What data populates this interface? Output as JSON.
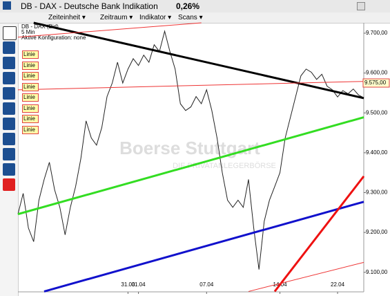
{
  "header": {
    "title": "DB - DAX - Deutsche Bank Indikation",
    "change": "0,26%"
  },
  "menu": [
    "Zeiteinheit",
    "Zeitraum",
    "Indikator",
    "Scans"
  ],
  "info": [
    "DB - DAX (Bid)",
    "5 Min",
    "Aktive Konfiguration: none"
  ],
  "drawings": [
    "Linie",
    "Linie",
    "Linie",
    "Linie",
    "Linie",
    "Linie",
    "Linie",
    "Linie"
  ],
  "watermark": {
    "brand": "Boerse Stuttgart",
    "slogan": "DIE PRIVATANLEGERBÖRSE"
  },
  "chart_data": {
    "type": "line",
    "categories": [
      null,
      null,
      null,
      null,
      null,
      null,
      null,
      null,
      null,
      null,
      null,
      null,
      null,
      null,
      null,
      null,
      null,
      null,
      null,
      null,
      null,
      "31.03",
      null,
      "01.04",
      null,
      null,
      null,
      null,
      null,
      null,
      null,
      null,
      null,
      null,
      null,
      null,
      "07.04",
      null,
      null,
      null,
      null,
      null,
      null,
      null,
      null,
      null,
      null,
      null,
      null,
      null,
      "14.04",
      null,
      null,
      null,
      null,
      null,
      null,
      null,
      null,
      null,
      null,
      "22.04",
      null,
      null,
      null,
      null,
      null
    ],
    "series": [
      {
        "color": "#222222",
        "values": [
          9246,
          9298,
          9211,
          9177,
          9281,
          9333,
          9376,
          9307,
          9263,
          9194,
          9263,
          9315,
          9385,
          9480,
          9437,
          9419,
          9463,
          9541,
          9575,
          9627,
          9575,
          9610,
          9636,
          9619,
          9645,
          9627,
          9671,
          9654,
          9705,
          9654,
          9610,
          9523,
          9506,
          9515,
          9541,
          9523,
          9558,
          9506,
          9437,
          9350,
          9281,
          9263,
          9281,
          9263,
          9333,
          9211,
          9107,
          9228,
          9281,
          9315,
          9350,
          9437,
          9489,
          9541,
          9593,
          9610,
          9602,
          9584,
          9597,
          9567,
          9558,
          9540,
          9556,
          9548,
          9560,
          9545,
          9538
        ]
      }
    ],
    "trendlines": [
      {
        "color": "#000000",
        "width": 3,
        "x": [
          3,
          66
        ],
        "values": [
          9726,
          9537
        ]
      },
      {
        "color": "#33dd22",
        "width": 3,
        "x": [
          0,
          66
        ],
        "values": [
          9246,
          9489
        ]
      },
      {
        "color": "#1111cc",
        "width": 3,
        "x": [
          5,
          66
        ],
        "values": [
          9052,
          9277
        ]
      },
      {
        "color": "#ee1111",
        "width": 3,
        "x": [
          49,
          66
        ],
        "values": [
          9052,
          9341
        ]
      },
      {
        "color": "#ee3333",
        "width": 1,
        "x": [
          0,
          66
        ],
        "values": [
          9558,
          9579
        ]
      },
      {
        "color": "#ee3333",
        "width": 1,
        "x": [
          44,
          66
        ],
        "values": [
          9052,
          9125
        ]
      },
      {
        "color": "#ee3333",
        "width": 1,
        "x": [
          0,
          35
        ],
        "values": [
          9690,
          9726
        ]
      }
    ],
    "last_price": {
      "value": 9575,
      "label": "9.575,00"
    },
    "xlim": [
      0,
      66
    ],
    "ylim": [
      9051,
      9726
    ],
    "yticks": [
      {
        "value": 9100,
        "label": "9.100,00"
      },
      {
        "value": 9200,
        "label": "9.200,00"
      },
      {
        "value": 9300,
        "label": "9.300,00"
      },
      {
        "value": 9400,
        "label": "9.400,00"
      },
      {
        "value": 9500,
        "label": "9.500,00"
      },
      {
        "value": 9600,
        "label": "9.600,00"
      },
      {
        "value": 9700,
        "label": "9.700,00"
      }
    ]
  }
}
